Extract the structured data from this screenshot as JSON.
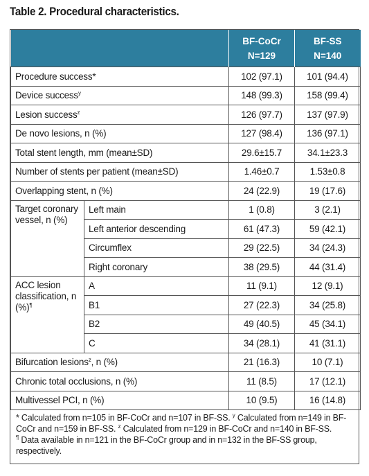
{
  "title": "Table 2. Procedural characteristics.",
  "columns": {
    "col1_line1": "BF-CoCr",
    "col1_line2": "N=129",
    "col2_line1": "BF-SS",
    "col2_line2": "N=140"
  },
  "rows": {
    "procedure_success": {
      "label": "Procedure success*",
      "a": "102 (97.1)",
      "b": "101 (94.4)"
    },
    "device_success": {
      "label": "Device success",
      "mark": "y",
      "a": "148 (99.3)",
      "b": "158 (99.4)"
    },
    "lesion_success": {
      "label": "Lesion success",
      "mark": "z",
      "a": "126 (97.7)",
      "b": "137 (97.9)"
    },
    "de_novo": {
      "label": "De novo lesions, n (%)",
      "a": "127 (98.4)",
      "b": "136 (97.1)"
    },
    "stent_length": {
      "label": "Total stent length, mm (mean±SD)",
      "a": "29.6±15.7",
      "b": "34.1±23.3"
    },
    "stents_per_patient": {
      "label": "Number of stents per patient (mean±SD)",
      "a": "1.46±0.7",
      "b": "1.53±0.8"
    },
    "overlapping": {
      "label": "Overlapping stent, n (%)",
      "a": "24 (22.9)",
      "b": "19 (17.6)"
    }
  },
  "target_vessel": {
    "group_label": "Target coronary vessel, n (%)",
    "items": [
      {
        "label": "Left main",
        "a": "1 (0.8)",
        "b": "3 (2.1)"
      },
      {
        "label": "Left anterior descending",
        "a": "61 (47.3)",
        "b": "59 (42.1)"
      },
      {
        "label": "Circumflex",
        "a": "29 (22.5)",
        "b": "34 (24.3)"
      },
      {
        "label": "Right coronary",
        "a": "38 (29.5)",
        "b": "44 (31.4)"
      }
    ]
  },
  "acc": {
    "group_label": "ACC lesion classification, n (%)",
    "mark": "¶",
    "items": [
      {
        "label": "A",
        "a": "11 (9.1)",
        "b": "12 (9.1)"
      },
      {
        "label": "B1",
        "a": "27 (22.3)",
        "b": "34 (25.8)"
      },
      {
        "label": "B2",
        "a": "49 (40.5)",
        "b": "45 (34.1)"
      },
      {
        "label": "C",
        "a": "34 (28.1)",
        "b": "41 (31.1)"
      }
    ]
  },
  "tail_rows": {
    "bifurcation": {
      "label": "Bifurcation lesions",
      "mark": "z",
      "label_tail": ", n (%)",
      "a": "21 (16.3)",
      "b": "10 (7.1)"
    },
    "cto": {
      "label": "Chronic total occlusions, n (%)",
      "a": "11 (8.5)",
      "b": "17 (12.1)"
    },
    "multivessel": {
      "label": "Multivessel PCI, n (%)",
      "a": "10 (9.5)",
      "b": "16 (14.8)"
    }
  },
  "footnote": {
    "p1": "* Calculated from n=105 in BF-CoCr and n=107 in BF-SS. ",
    "m1": "y",
    "p2": " Calculated from n=149 in BF-CoCr and n=159 in BF-SS. ",
    "m2": "z",
    "p3": " Calculated from n=129 in BF-CoCr and n=140 in BF-SS.",
    "m3": "¶",
    "p4": " Data available in n=121 in the BF-CoCr group and in n=132 in the BF-SS group, respectively."
  }
}
